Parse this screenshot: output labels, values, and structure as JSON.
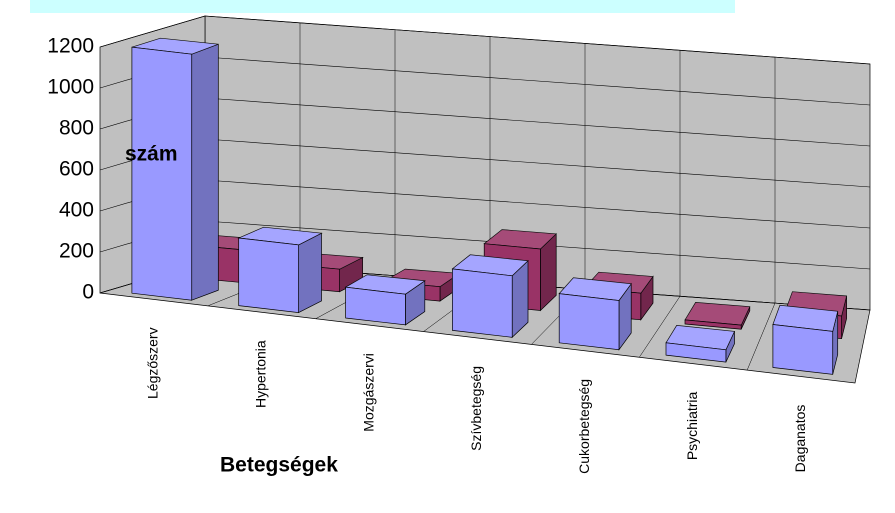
{
  "chart_data": {
    "type": "bar3d",
    "y_label": "szám",
    "x_label": "Betegségek",
    "categories": [
      "Légzőszerv",
      "Hypertonia",
      "Mozgászervi",
      "Szívbetegség",
      "Cukorbetegség",
      "Psychiatria",
      "Daganatos"
    ],
    "series": [
      {
        "color": "#9999ff",
        "values": [
          1200,
          330,
          150,
          300,
          240,
          60,
          210
        ]
      },
      {
        "color": "#993366",
        "values": [
          160,
          110,
          70,
          300,
          130,
          20,
          110
        ]
      }
    ],
    "ylim": [
      0,
      1200
    ],
    "yticks": [
      0,
      200,
      400,
      600,
      800,
      1000,
      1200
    ],
    "grid": true
  }
}
